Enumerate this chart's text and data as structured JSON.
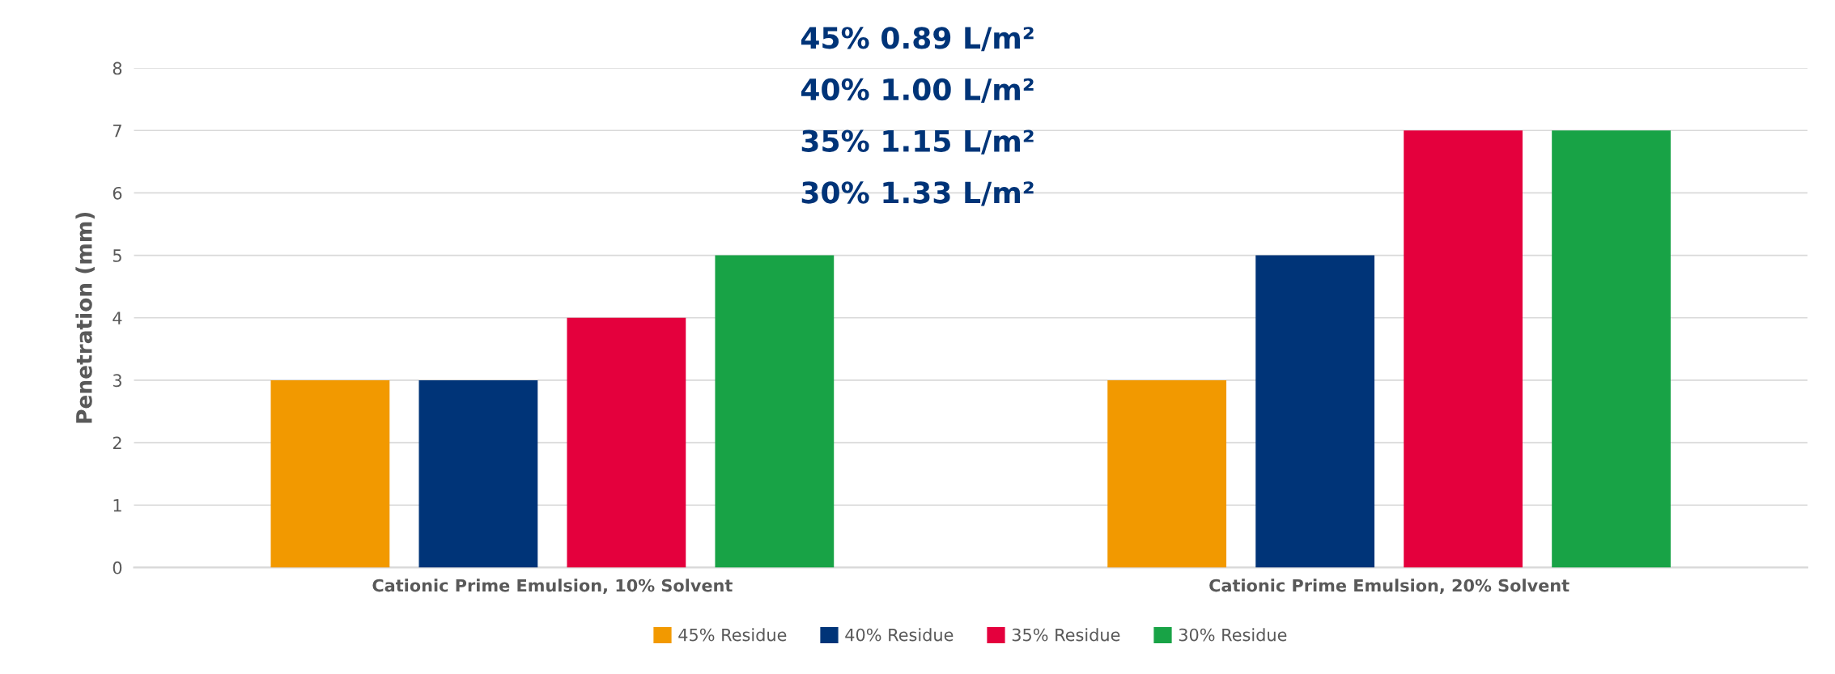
{
  "chart_data": {
    "type": "bar",
    "ylabel": "Penetration (mm)",
    "categories": [
      "Cationic Prime Emulsion, 10% Solvent",
      "Cationic Prime Emulsion, 20% Solvent"
    ],
    "series": [
      {
        "name": "45% Residue",
        "color": "#f29900",
        "values": [
          3,
          3
        ]
      },
      {
        "name": "40% Residue",
        "color": "#003478",
        "values": [
          3,
          5
        ]
      },
      {
        "name": "35% Residue",
        "color": "#e4003d",
        "values": [
          4,
          7
        ]
      },
      {
        "name": "30% Residue",
        "color": "#18a346",
        "values": [
          5,
          7
        ]
      }
    ],
    "ylim": [
      0,
      8
    ],
    "yticks": [
      0,
      1,
      2,
      3,
      4,
      5,
      6,
      7,
      8
    ],
    "grid": "y",
    "legend": "bottom",
    "annotations": [
      "45% 0.89 L/m²",
      "40% 1.00 L/m²",
      "35% 1.15 L/m²",
      "30% 1.33 L/m²"
    ]
  }
}
